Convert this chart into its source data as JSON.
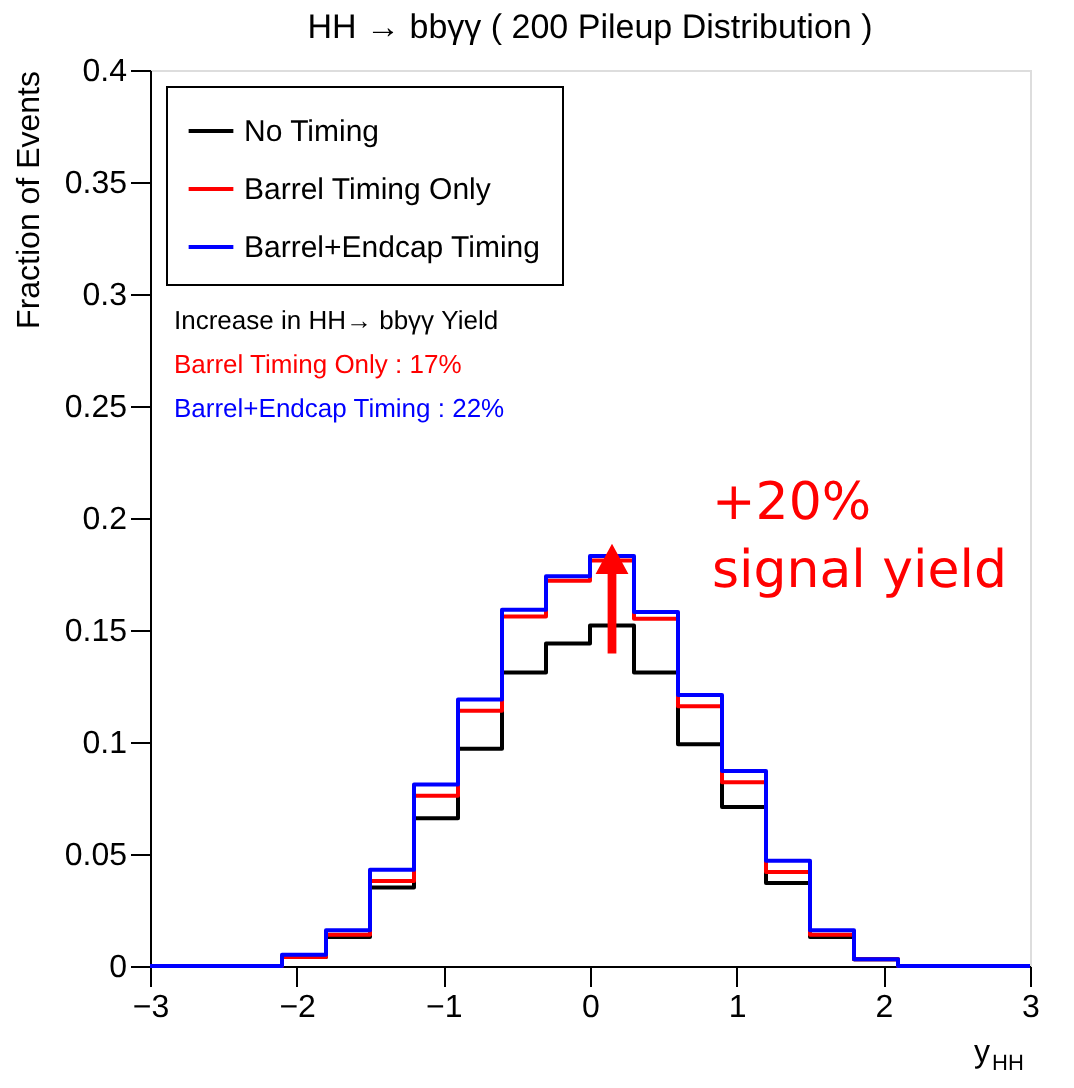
{
  "chart_data": {
    "type": "histogram",
    "title": "HH → bbγγ  ( 200 Pileup Distribution )",
    "xlabel": "y$_{HH}$",
    "ylabel": "Fraction of Events",
    "bins": [
      -3,
      -2.7,
      -2.4,
      -2.1,
      -1.8,
      -1.5,
      -1.2,
      -0.9,
      -0.6,
      -0.3,
      0,
      0.3,
      0.6,
      0.9,
      1.2,
      1.5,
      1.8,
      2.1,
      2.4,
      2.7,
      3
    ],
    "series": [
      {
        "name": "No Timing",
        "color": "#000000",
        "values": [
          0,
          0,
          0,
          0.004,
          0.013,
          0.035,
          0.066,
          0.097,
          0.131,
          0.144,
          0.152,
          0.131,
          0.099,
          0.071,
          0.037,
          0.013,
          0.003,
          0,
          0,
          0
        ]
      },
      {
        "name": "Barrel Timing Only",
        "color": "#ff0000",
        "values": [
          0,
          0,
          0,
          0.004,
          0.014,
          0.038,
          0.076,
          0.114,
          0.156,
          0.172,
          0.181,
          0.155,
          0.116,
          0.082,
          0.042,
          0.014,
          0.003,
          0,
          0,
          0
        ]
      },
      {
        "name": "Barrel+Endcap Timing",
        "color": "#0000ff",
        "values": [
          0,
          0,
          0,
          0.005,
          0.016,
          0.043,
          0.081,
          0.119,
          0.159,
          0.174,
          0.183,
          0.158,
          0.121,
          0.087,
          0.047,
          0.016,
          0.003,
          0,
          0,
          0
        ]
      }
    ],
    "xlim": [
      -3,
      3
    ],
    "xticks": [
      -3,
      -2,
      -1,
      0,
      1,
      2,
      3
    ],
    "ylim": [
      0,
      0.4
    ],
    "yticks": [
      0,
      0.05,
      0.1,
      0.15,
      0.2,
      0.25,
      0.3,
      0.35,
      0.4
    ],
    "grid": false,
    "legend": "top left",
    "annotations": [
      "Increase in HH→ bbγγ Yield",
      "Barrel Timing Only : 17%",
      "Barrel+Endcap Timing : 22%",
      "+20%\nsignal yield"
    ]
  }
}
